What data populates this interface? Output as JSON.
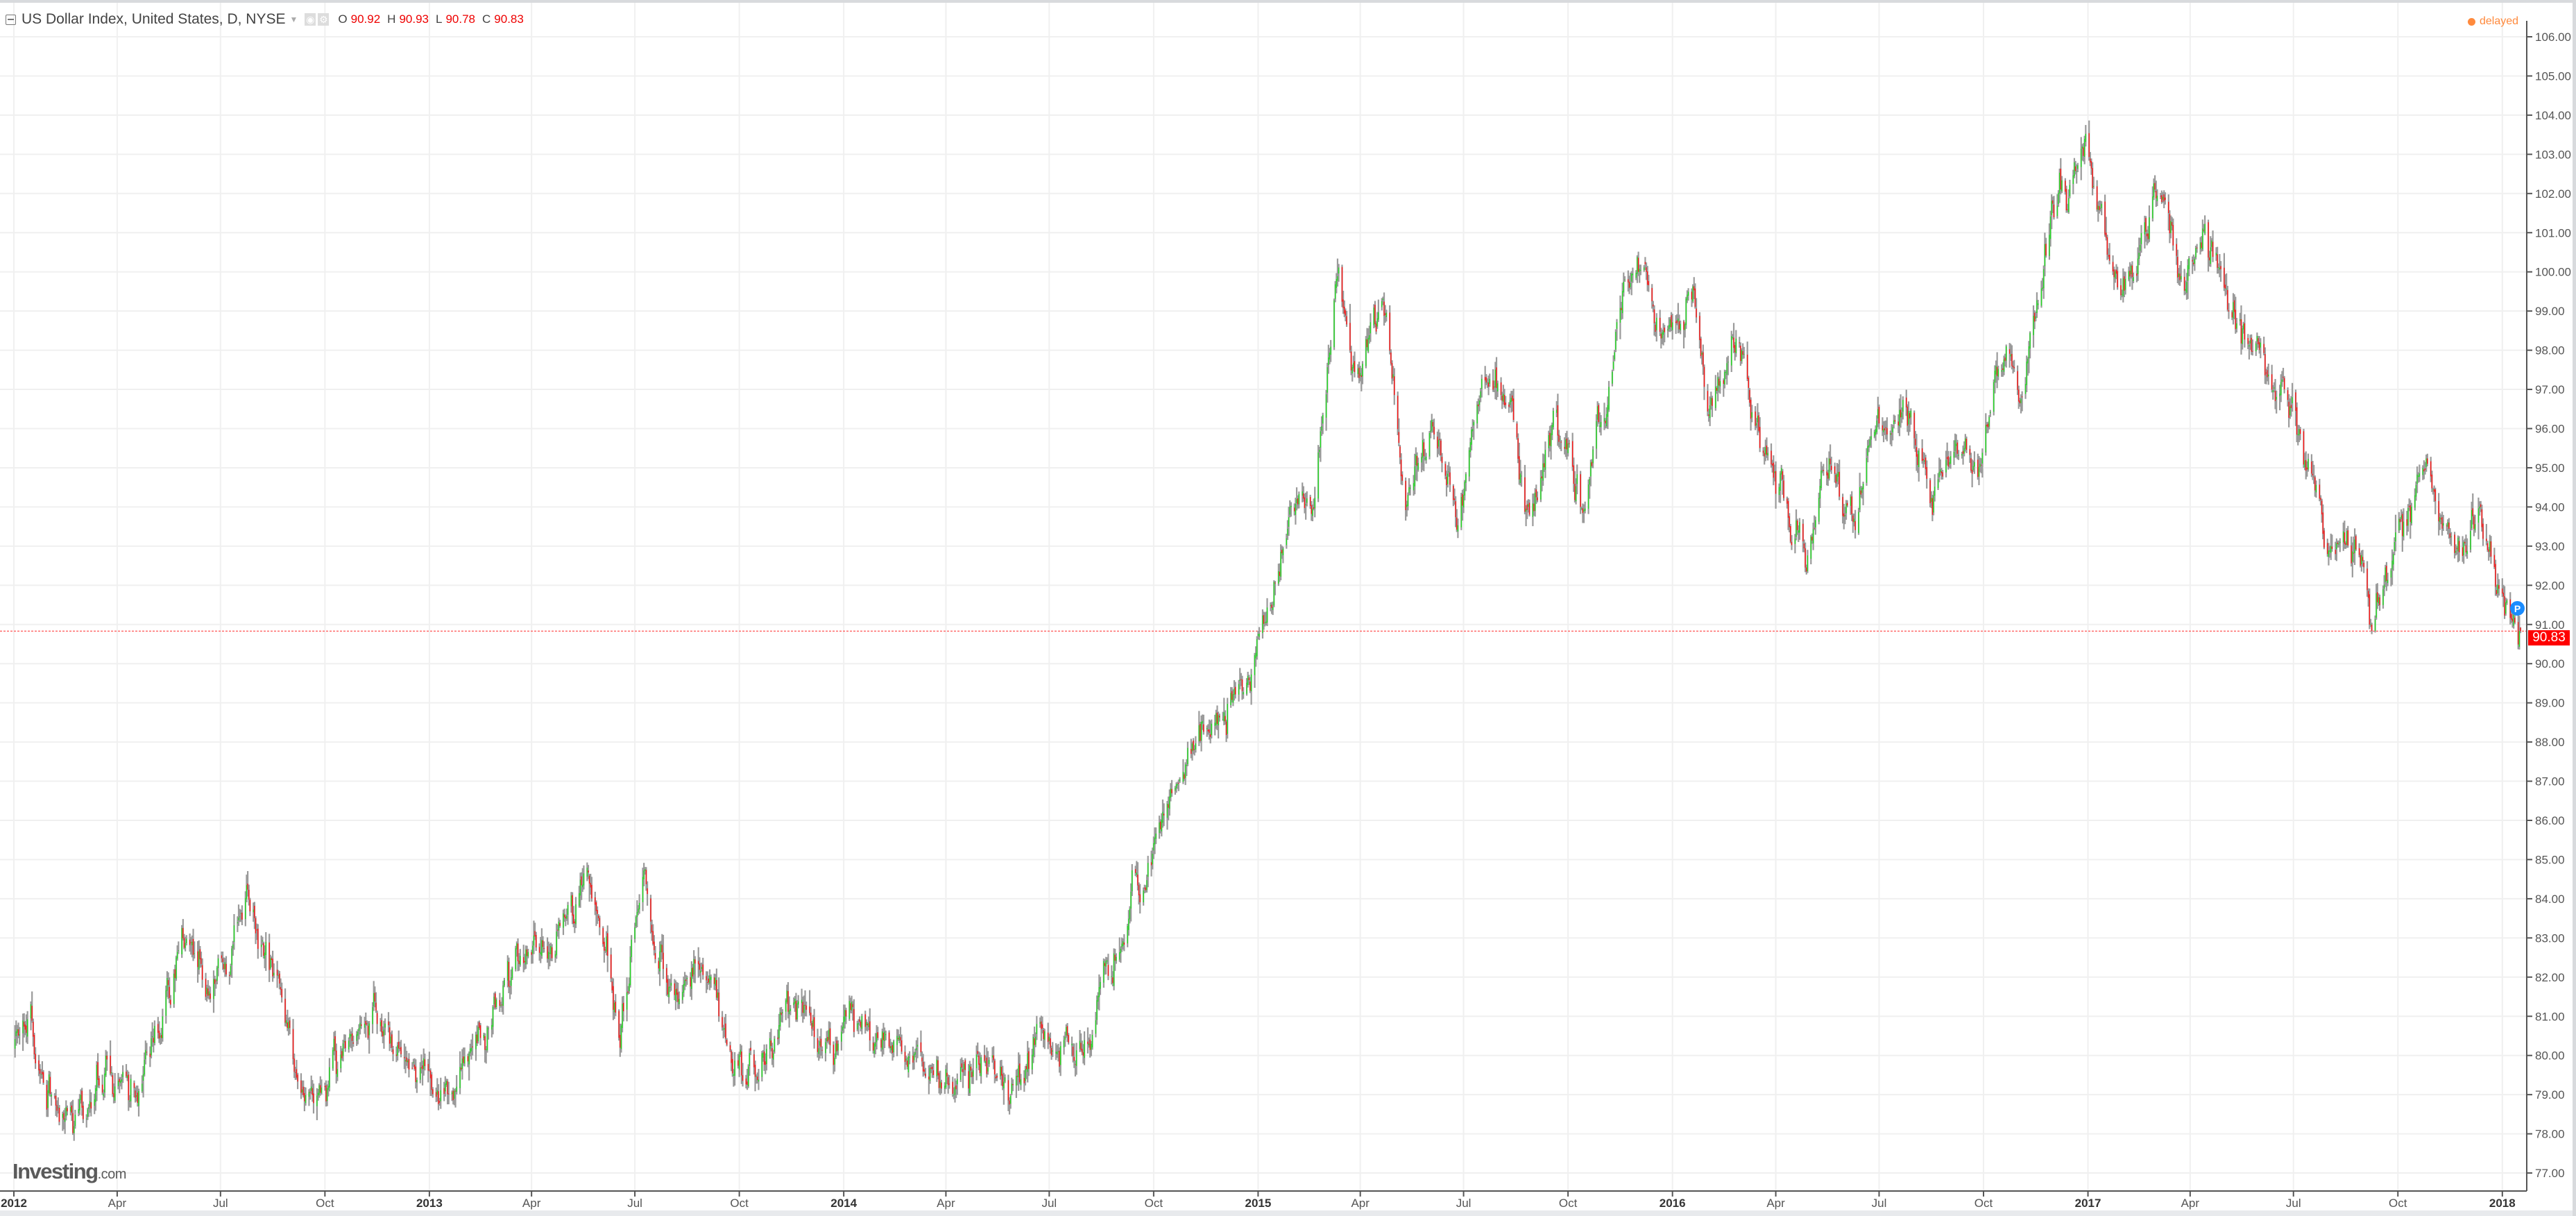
{
  "header": {
    "title": "US Dollar Index, United States, D, NYSE",
    "ohlc": [
      {
        "key": "O",
        "value": "90.92"
      },
      {
        "key": "H",
        "value": "90.93"
      },
      {
        "key": "L",
        "value": "90.78"
      },
      {
        "key": "C",
        "value": "90.83"
      }
    ],
    "status": "delayed"
  },
  "logo": {
    "main": "Investing",
    "suffix": ".com"
  },
  "price_marker": {
    "letter": "P",
    "last_price": "90.83"
  },
  "colors": {
    "up": "#22dd22",
    "down": "#ff1414",
    "wick": "#9a9a9a",
    "grid": "#f0f0f0",
    "last_line": "#ff6b6b",
    "delayed": "#ff8a3d",
    "marker": "#1a8cff"
  },
  "chart_data": {
    "type": "candlestick",
    "title": "US Dollar Index, United States, D, NYSE",
    "ylim": [
      76.5,
      106.6
    ],
    "y_ticks": [
      "106.00",
      "105.00",
      "104.00",
      "103.00",
      "102.00",
      "101.00",
      "100.00",
      "99.00",
      "98.00",
      "97.00",
      "96.00",
      "95.00",
      "94.00",
      "93.00",
      "92.00",
      "91.00",
      "90.00",
      "89.00",
      "88.00",
      "87.00",
      "86.00",
      "85.00",
      "84.00",
      "83.00",
      "82.00",
      "81.00",
      "80.00",
      "79.00",
      "78.00",
      "77.00"
    ],
    "x_ticks": [
      {
        "label": "2012",
        "date": "2012-01-01",
        "bold": true
      },
      {
        "label": "Apr",
        "date": "2012-04-01"
      },
      {
        "label": "Jul",
        "date": "2012-07-01"
      },
      {
        "label": "Oct",
        "date": "2012-10-01"
      },
      {
        "label": "2013",
        "date": "2013-01-01",
        "bold": true
      },
      {
        "label": "Apr",
        "date": "2013-04-01"
      },
      {
        "label": "Jul",
        "date": "2013-07-01"
      },
      {
        "label": "Oct",
        "date": "2013-10-01"
      },
      {
        "label": "2014",
        "date": "2014-01-01",
        "bold": true
      },
      {
        "label": "Apr",
        "date": "2014-04-01"
      },
      {
        "label": "Jul",
        "date": "2014-07-01"
      },
      {
        "label": "Oct",
        "date": "2014-10-01"
      },
      {
        "label": "2015",
        "date": "2015-01-01",
        "bold": true
      },
      {
        "label": "Apr",
        "date": "2015-04-01"
      },
      {
        "label": "Jul",
        "date": "2015-07-01"
      },
      {
        "label": "Oct",
        "date": "2015-10-01"
      },
      {
        "label": "2016",
        "date": "2016-01-01",
        "bold": true
      },
      {
        "label": "Apr",
        "date": "2016-04-01"
      },
      {
        "label": "Jul",
        "date": "2016-07-01"
      },
      {
        "label": "Oct",
        "date": "2016-10-01"
      },
      {
        "label": "2017",
        "date": "2017-01-01",
        "bold": true
      },
      {
        "label": "Apr",
        "date": "2017-04-01"
      },
      {
        "label": "Jul",
        "date": "2017-07-01"
      },
      {
        "label": "Oct",
        "date": "2017-10-01"
      },
      {
        "label": "2018",
        "date": "2018-01-01",
        "bold": true
      }
    ],
    "last": {
      "open": 90.92,
      "high": 90.93,
      "low": 90.78,
      "close": 90.83
    },
    "approx_close_path": [
      [
        "2012-01-02",
        80.2
      ],
      [
        "2012-01-16",
        81.5
      ],
      [
        "2012-01-30",
        79.0
      ],
      [
        "2012-02-22",
        78.3
      ],
      [
        "2012-03-20",
        79.5
      ],
      [
        "2012-04-18",
        79.2
      ],
      [
        "2012-05-10",
        80.6
      ],
      [
        "2012-05-28",
        83.0
      ],
      [
        "2012-06-20",
        81.8
      ],
      [
        "2012-07-24",
        83.9
      ],
      [
        "2012-08-14",
        82.3
      ],
      [
        "2012-09-13",
        78.7
      ],
      [
        "2012-10-12",
        79.8
      ],
      [
        "2012-11-16",
        81.0
      ],
      [
        "2012-12-14",
        79.6
      ],
      [
        "2013-01-11",
        79.2
      ],
      [
        "2013-02-13",
        80.2
      ],
      [
        "2013-03-28",
        83.0
      ],
      [
        "2013-04-19",
        82.3
      ],
      [
        "2013-05-20",
        84.3
      ],
      [
        "2013-06-18",
        80.7
      ],
      [
        "2013-07-08",
        84.5
      ],
      [
        "2013-08-01",
        81.5
      ],
      [
        "2013-09-05",
        82.2
      ],
      [
        "2013-09-20",
        80.3
      ],
      [
        "2013-10-16",
        79.2
      ],
      [
        "2013-11-12",
        81.3
      ],
      [
        "2013-12-13",
        80.0
      ],
      [
        "2014-01-23",
        81.0
      ],
      [
        "2014-02-20",
        80.3
      ],
      [
        "2014-03-20",
        79.8
      ],
      [
        "2014-04-18",
        79.3
      ],
      [
        "2014-05-12",
        80.2
      ],
      [
        "2014-05-27",
        79.1
      ],
      [
        "2014-06-25",
        80.6
      ],
      [
        "2014-07-24",
        80.2
      ],
      [
        "2014-08-15",
        81.5
      ],
      [
        "2014-09-12",
        84.0
      ],
      [
        "2014-10-05",
        86.0
      ],
      [
        "2014-11-03",
        87.5
      ],
      [
        "2014-11-25",
        88.4
      ],
      [
        "2014-12-17",
        89.3
      ],
      [
        "2015-01-08",
        91.0
      ],
      [
        "2015-01-30",
        94.0
      ],
      [
        "2015-02-20",
        94.5
      ],
      [
        "2015-03-13",
        100.2
      ],
      [
        "2015-03-27",
        97.0
      ],
      [
        "2015-04-20",
        99.0
      ],
      [
        "2015-05-12",
        94.0
      ],
      [
        "2015-06-04",
        96.2
      ],
      [
        "2015-06-25",
        93.5
      ],
      [
        "2015-07-16",
        97.5
      ],
      [
        "2015-08-14",
        96.5
      ],
      [
        "2015-08-28",
        93.5
      ],
      [
        "2015-09-20",
        96.0
      ],
      [
        "2015-10-15",
        93.9
      ],
      [
        "2015-11-18",
        99.5
      ],
      [
        "2015-12-03",
        100.4
      ],
      [
        "2015-12-20",
        98.0
      ],
      [
        "2016-01-15",
        99.5
      ],
      [
        "2016-02-05",
        96.5
      ],
      [
        "2016-02-28",
        98.3
      ],
      [
        "2016-03-28",
        95.0
      ],
      [
        "2016-04-28",
        92.5
      ],
      [
        "2016-05-18",
        95.5
      ],
      [
        "2016-06-10",
        93.8
      ],
      [
        "2016-06-25",
        96.0
      ],
      [
        "2016-07-22",
        96.5
      ],
      [
        "2016-08-15",
        94.5
      ],
      [
        "2016-09-05",
        95.5
      ],
      [
        "2016-09-28",
        95.3
      ],
      [
        "2016-10-22",
        98.5
      ],
      [
        "2016-11-05",
        97.2
      ],
      [
        "2016-12-01",
        101.5
      ],
      [
        "2016-12-28",
        103.3
      ],
      [
        "2017-01-16",
        100.5
      ],
      [
        "2017-02-02",
        99.5
      ],
      [
        "2017-03-08",
        102.0
      ],
      [
        "2017-03-27",
        99.5
      ],
      [
        "2017-04-12",
        100.8
      ],
      [
        "2017-05-15",
        98.8
      ],
      [
        "2017-06-16",
        97.2
      ],
      [
        "2017-07-06",
        96.0
      ],
      [
        "2017-07-27",
        93.5
      ],
      [
        "2017-08-30",
        92.8
      ],
      [
        "2017-09-08",
        91.3
      ],
      [
        "2017-10-06",
        93.6
      ],
      [
        "2017-10-27",
        94.8
      ],
      [
        "2017-11-27",
        92.8
      ],
      [
        "2017-12-12",
        94.0
      ],
      [
        "2017-12-29",
        92.2
      ],
      [
        "2018-01-17",
        90.83
      ]
    ]
  }
}
